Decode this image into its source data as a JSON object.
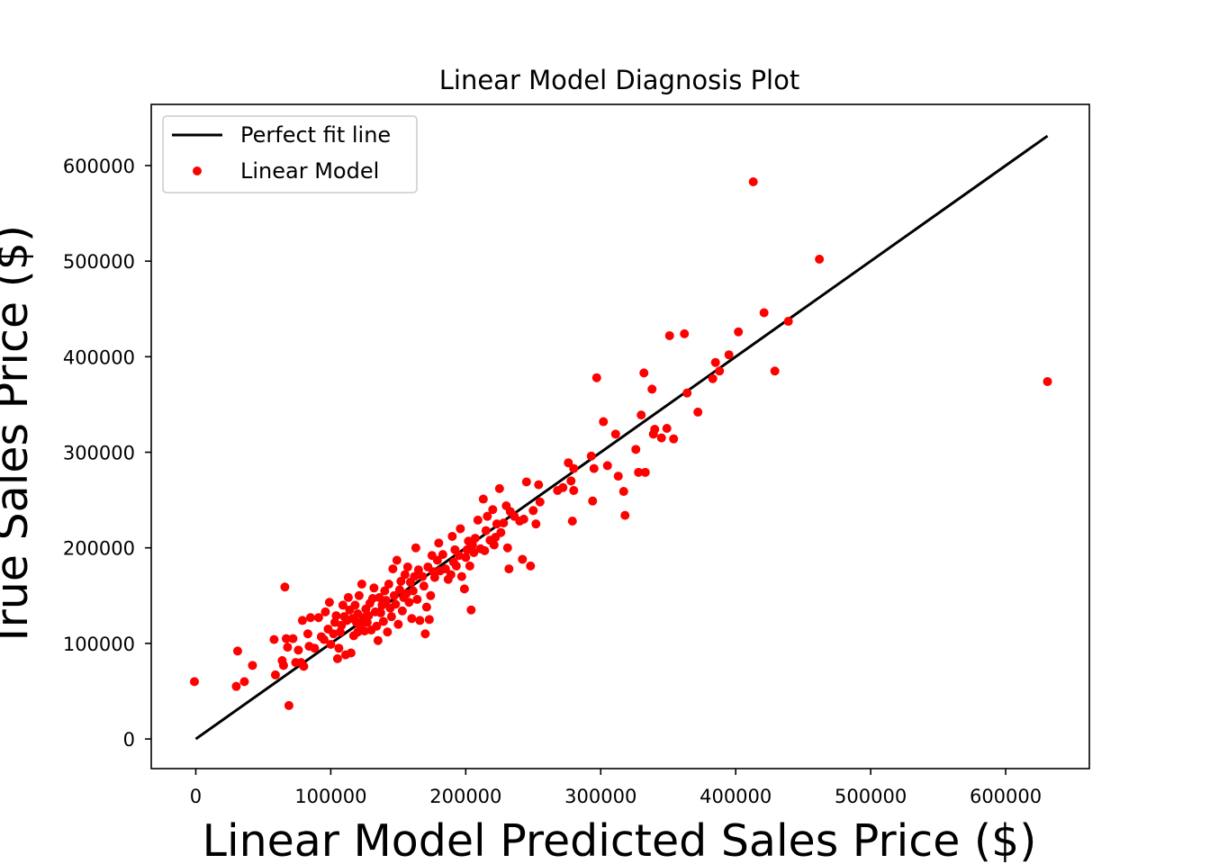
{
  "chart_data": {
    "type": "scatter",
    "title": "Linear Model Diagnosis Plot",
    "xlabel": "Linear Model Predicted Sales Price ($)",
    "ylabel": "True Sales Price ($)",
    "xlim": [
      -33000,
      662000
    ],
    "ylim": [
      -31000,
      664000
    ],
    "xticks": [
      0,
      100000,
      200000,
      300000,
      400000,
      500000,
      600000
    ],
    "yticks": [
      0,
      100000,
      200000,
      300000,
      400000,
      500000,
      600000
    ],
    "xtick_labels": [
      "0",
      "100000",
      "200000",
      "300000",
      "400000",
      "500000",
      "600000"
    ],
    "ytick_labels": [
      "0",
      "100000",
      "200000",
      "300000",
      "400000",
      "500000",
      "600000"
    ],
    "grid": false,
    "legend_position": "upper left",
    "colors": {
      "points": "#ff0000",
      "line": "#000000"
    },
    "series": [
      {
        "name": "Perfect fit line",
        "kind": "line",
        "x": [
          0,
          631000
        ],
        "y": [
          0,
          631000
        ]
      },
      {
        "name": "Linear Model",
        "kind": "scatter",
        "points": [
          [
            -1000,
            60000
          ],
          [
            30000,
            55000
          ],
          [
            31000,
            92000
          ],
          [
            36000,
            60000
          ],
          [
            42000,
            77000
          ],
          [
            58000,
            104000
          ],
          [
            59000,
            67000
          ],
          [
            64000,
            82000
          ],
          [
            65000,
            77000
          ],
          [
            66000,
            159000
          ],
          [
            67000,
            105000
          ],
          [
            68000,
            96000
          ],
          [
            69000,
            35000
          ],
          [
            72000,
            105000
          ],
          [
            74000,
            80000
          ],
          [
            76000,
            93000
          ],
          [
            78000,
            80000
          ],
          [
            80000,
            76000
          ],
          [
            79000,
            124000
          ],
          [
            83000,
            110000
          ],
          [
            84000,
            97000
          ],
          [
            85000,
            127000
          ],
          [
            88000,
            95000
          ],
          [
            91000,
            127000
          ],
          [
            93000,
            107000
          ],
          [
            95000,
            104000
          ],
          [
            96000,
            133000
          ],
          [
            98000,
            115000
          ],
          [
            99000,
            143000
          ],
          [
            100000,
            99000
          ],
          [
            102000,
            110000
          ],
          [
            103000,
            122000
          ],
          [
            104000,
            129000
          ],
          [
            106000,
            95000
          ],
          [
            105000,
            84000
          ],
          [
            107000,
            112000
          ],
          [
            108000,
            119000
          ],
          [
            109000,
            140000
          ],
          [
            110000,
            128000
          ],
          [
            111000,
            88000
          ],
          [
            112000,
            124000
          ],
          [
            113000,
            148000
          ],
          [
            114000,
            135000
          ],
          [
            115000,
            90000
          ],
          [
            116000,
            126000
          ],
          [
            117000,
            108000
          ],
          [
            118000,
            140000
          ],
          [
            119000,
            122000
          ],
          [
            120000,
            112000
          ],
          [
            120000,
            131000
          ],
          [
            121000,
            150000
          ],
          [
            122000,
            118000
          ],
          [
            123000,
            162000
          ],
          [
            124000,
            127000
          ],
          [
            125000,
            113000
          ],
          [
            126000,
            136000
          ],
          [
            127000,
            122000
          ],
          [
            128000,
            129000
          ],
          [
            129000,
            142000
          ],
          [
            130000,
            114000
          ],
          [
            131000,
            147000
          ],
          [
            132000,
            158000
          ],
          [
            133000,
            133000
          ],
          [
            134000,
            118000
          ],
          [
            135000,
            103000
          ],
          [
            136000,
            148000
          ],
          [
            137000,
            132000
          ],
          [
            138000,
            140000
          ],
          [
            139000,
            123000
          ],
          [
            140000,
            155000
          ],
          [
            141000,
            145000
          ],
          [
            142000,
            112000
          ],
          [
            143000,
            162000
          ],
          [
            144000,
            137000
          ],
          [
            145000,
            128000
          ],
          [
            146000,
            178000
          ],
          [
            147000,
            150000
          ],
          [
            148000,
            141000
          ],
          [
            149000,
            187000
          ],
          [
            150000,
            120000
          ],
          [
            151000,
            156000
          ],
          [
            152000,
            165000
          ],
          [
            153000,
            134000
          ],
          [
            154000,
            148000
          ],
          [
            155000,
            172000
          ],
          [
            156000,
            152000
          ],
          [
            157000,
            180000
          ],
          [
            158000,
            143000
          ],
          [
            159000,
            164000
          ],
          [
            160000,
            126000
          ],
          [
            161000,
            155000
          ],
          [
            162000,
            170000
          ],
          [
            163000,
            200000
          ],
          [
            164000,
            146000
          ],
          [
            165000,
            177000
          ],
          [
            166000,
            124000
          ],
          [
            168000,
            170000
          ],
          [
            169000,
            160000
          ],
          [
            170000,
            110000
          ],
          [
            171000,
            138000
          ],
          [
            172000,
            180000
          ],
          [
            173000,
            125000
          ],
          [
            174000,
            150000
          ],
          [
            175000,
            192000
          ],
          [
            176000,
            175000
          ],
          [
            177000,
            169000
          ],
          [
            179000,
            187000
          ],
          [
            180000,
            205000
          ],
          [
            181000,
            176000
          ],
          [
            183000,
            193000
          ],
          [
            185000,
            178000
          ],
          [
            187000,
            167000
          ],
          [
            189000,
            172000
          ],
          [
            190000,
            212000
          ],
          [
            191000,
            185000
          ],
          [
            192000,
            198000
          ],
          [
            193000,
            181000
          ],
          [
            195000,
            192000
          ],
          [
            196000,
            220000
          ],
          [
            197000,
            170000
          ],
          [
            199000,
            157000
          ],
          [
            200000,
            190000
          ],
          [
            201000,
            198000
          ],
          [
            202000,
            207000
          ],
          [
            203000,
            181000
          ],
          [
            204000,
            135000
          ],
          [
            205000,
            203000
          ],
          [
            206000,
            195000
          ],
          [
            207000,
            210000
          ],
          [
            209000,
            229000
          ],
          [
            211000,
            199000
          ],
          [
            213000,
            251000
          ],
          [
            214000,
            197000
          ],
          [
            215000,
            218000
          ],
          [
            216000,
            233000
          ],
          [
            218000,
            208000
          ],
          [
            220000,
            240000
          ],
          [
            221000,
            203000
          ],
          [
            222000,
            211000
          ],
          [
            223000,
            225000
          ],
          [
            225000,
            262000
          ],
          [
            226000,
            216000
          ],
          [
            228000,
            226000
          ],
          [
            230000,
            244000
          ],
          [
            231000,
            200000
          ],
          [
            232000,
            178000
          ],
          [
            233000,
            238000
          ],
          [
            236000,
            233000
          ],
          [
            240000,
            228000
          ],
          [
            242000,
            188000
          ],
          [
            243000,
            230000
          ],
          [
            245000,
            269000
          ],
          [
            248000,
            181000
          ],
          [
            250000,
            239000
          ],
          [
            252000,
            225000
          ],
          [
            254000,
            266000
          ],
          [
            255000,
            248000
          ],
          [
            268000,
            260000
          ],
          [
            272000,
            263000
          ],
          [
            276000,
            289000
          ],
          [
            278000,
            270000
          ],
          [
            279000,
            228000
          ],
          [
            280000,
            283000
          ],
          [
            280000,
            260000
          ],
          [
            293000,
            296000
          ],
          [
            294000,
            249000
          ],
          [
            295000,
            283000
          ],
          [
            297000,
            378000
          ],
          [
            302000,
            332000
          ],
          [
            305000,
            286000
          ],
          [
            311000,
            319000
          ],
          [
            313000,
            275000
          ],
          [
            317000,
            259000
          ],
          [
            318000,
            234000
          ],
          [
            326000,
            303000
          ],
          [
            328000,
            279000
          ],
          [
            330000,
            339000
          ],
          [
            332000,
            383000
          ],
          [
            333000,
            279000
          ],
          [
            338000,
            366000
          ],
          [
            339000,
            319000
          ],
          [
            340000,
            324000
          ],
          [
            345000,
            315000
          ],
          [
            349000,
            325000
          ],
          [
            351000,
            422000
          ],
          [
            354000,
            314000
          ],
          [
            362000,
            424000
          ],
          [
            364000,
            362000
          ],
          [
            372000,
            342000
          ],
          [
            383000,
            377000
          ],
          [
            385000,
            394000
          ],
          [
            388000,
            385000
          ],
          [
            395000,
            402000
          ],
          [
            402000,
            426000
          ],
          [
            413000,
            583000
          ],
          [
            421000,
            446000
          ],
          [
            429000,
            385000
          ],
          [
            439000,
            437000
          ],
          [
            462000,
            502000
          ],
          [
            631000,
            374000
          ]
        ]
      }
    ]
  }
}
